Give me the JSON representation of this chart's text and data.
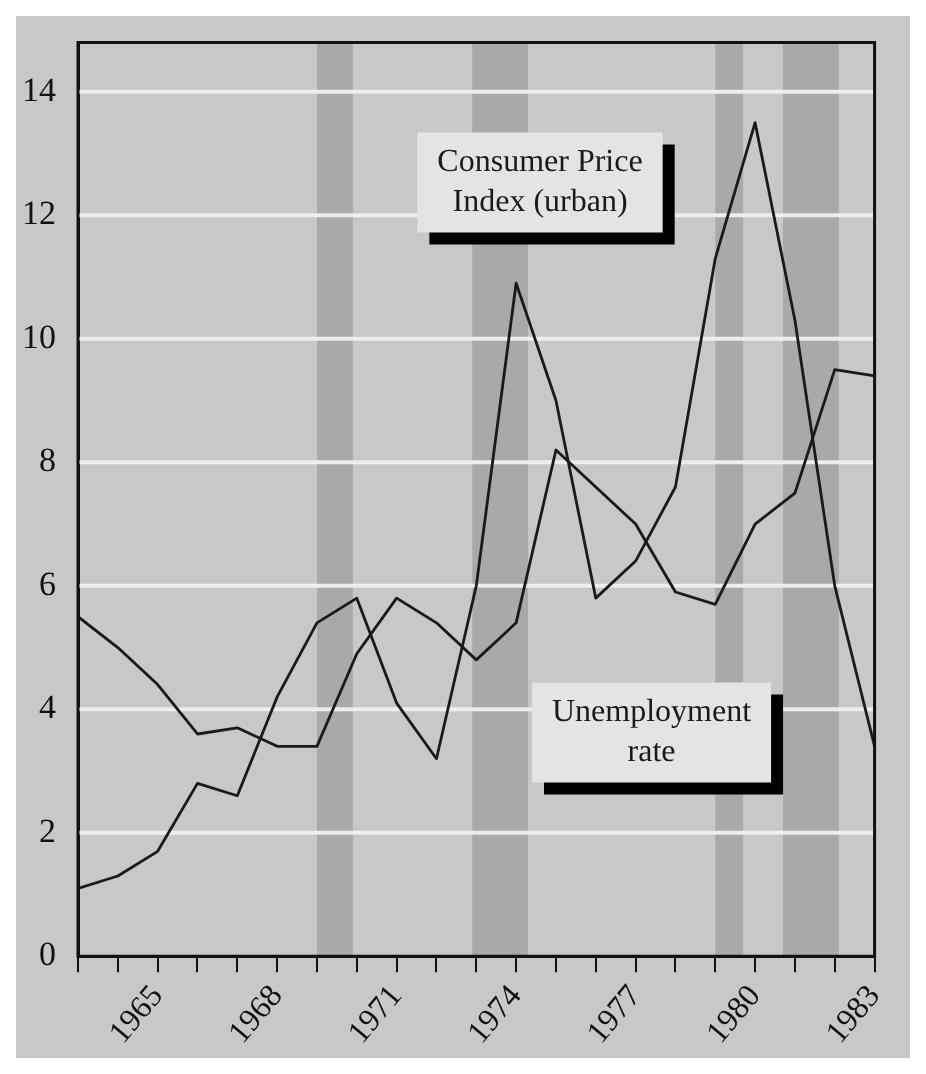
{
  "chart_data": {
    "type": "line",
    "x": [
      1963,
      1964,
      1965,
      1966,
      1967,
      1968,
      1969,
      1970,
      1971,
      1972,
      1973,
      1974,
      1975,
      1976,
      1977,
      1978,
      1979,
      1980,
      1981,
      1982,
      1983
    ],
    "series": [
      {
        "name": "Consumer Price Index (urban)",
        "color": "#1a1a1a",
        "values": [
          1.1,
          1.3,
          1.7,
          2.8,
          2.6,
          4.2,
          5.4,
          5.8,
          4.1,
          3.2,
          6.0,
          10.9,
          9.0,
          5.8,
          6.4,
          7.6,
          11.3,
          13.5,
          10.3,
          6.0,
          3.4
        ]
      },
      {
        "name": "Unemployment rate",
        "color": "#1a1a1a",
        "values": [
          5.5,
          5.0,
          4.4,
          3.6,
          3.7,
          3.4,
          3.4,
          4.9,
          5.8,
          5.4,
          4.8,
          5.4,
          8.2,
          7.6,
          7.0,
          5.9,
          5.7,
          7.0,
          7.5,
          9.5,
          9.4
        ]
      }
    ],
    "xlim": [
      1963,
      1983
    ],
    "xticks": [
      {
        "value": 1963,
        "label": null
      },
      {
        "value": 1964,
        "label": null
      },
      {
        "value": 1965,
        "label": "1965"
      },
      {
        "value": 1966,
        "label": null
      },
      {
        "value": 1967,
        "label": null
      },
      {
        "value": 1968,
        "label": "1968"
      },
      {
        "value": 1969,
        "label": null
      },
      {
        "value": 1970,
        "label": null
      },
      {
        "value": 1971,
        "label": "1971"
      },
      {
        "value": 1972,
        "label": null
      },
      {
        "value": 1973,
        "label": null
      },
      {
        "value": 1974,
        "label": "1974"
      },
      {
        "value": 1975,
        "label": null
      },
      {
        "value": 1976,
        "label": null
      },
      {
        "value": 1977,
        "label": "1977"
      },
      {
        "value": 1978,
        "label": null
      },
      {
        "value": 1979,
        "label": null
      },
      {
        "value": 1980,
        "label": "1980"
      },
      {
        "value": 1981,
        "label": null
      },
      {
        "value": 1982,
        "label": null
      },
      {
        "value": 1983,
        "label": "1983"
      }
    ],
    "ylim": [
      0,
      14.8
    ],
    "yticks": [
      0,
      2,
      4,
      6,
      8,
      10,
      12,
      14
    ],
    "bands": [
      {
        "axis": "x",
        "from": 1969,
        "to": 1969.9,
        "color": "#a9a9a9"
      },
      {
        "axis": "x",
        "from": 1972.9,
        "to": 1974.3,
        "color": "#a9a9a9"
      },
      {
        "axis": "x",
        "from": 1979,
        "to": 1979.7,
        "color": "#a9a9a9"
      },
      {
        "axis": "x",
        "from": 1980.7,
        "to": 1982.1,
        "color": "#a9a9a9"
      }
    ],
    "grid": "y",
    "legend": false,
    "marker": "none",
    "line_style": "solid"
  }
}
